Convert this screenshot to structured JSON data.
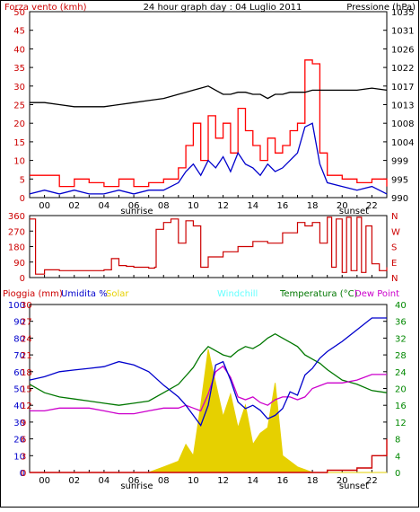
{
  "title": "24 hour graph day : 04 Luglio 2011",
  "colors": {
    "wind": "#cc0000",
    "gust": "#ff0000",
    "wind_avg": "#0000cc",
    "pressure": "#000000",
    "direction": "#cc0000",
    "rain": "#cc0000",
    "humidity": "#0000cc",
    "solar": "#e6d000",
    "windchill": "#66ffff",
    "temperature": "#007700",
    "dew_point": "#cc00cc",
    "axis_blue": "#0000cc",
    "axis_green": "#008800"
  },
  "x_axis": {
    "hour_ticks": [
      "00",
      "02",
      "04",
      "06",
      "08",
      "10",
      "12",
      "14",
      "16",
      "18",
      "20",
      "22"
    ],
    "sunrise_label": "sunrise",
    "sunset_label": "sunset"
  },
  "chart_data": [
    {
      "type": "line",
      "name": "wind-pressure",
      "left_axis_label": "Forza vento (kmh)",
      "right_axis_label": "Pressione (hPa)",
      "left_ticks": [
        0,
        5,
        10,
        15,
        20,
        25,
        30,
        35,
        40,
        45,
        50
      ],
      "right_ticks": [
        990,
        995,
        999,
        1004,
        1008,
        1013,
        1017,
        1022,
        1026,
        1031,
        1035
      ],
      "ylim": [
        0,
        50
      ],
      "pressure_ylim": [
        990,
        1035
      ],
      "x": [
        0,
        1,
        2,
        3,
        4,
        5,
        6,
        7,
        8,
        9,
        10,
        10.5,
        11,
        11.5,
        12,
        12.5,
        13,
        13.5,
        14,
        14.5,
        15,
        15.5,
        16,
        16.5,
        17,
        17.5,
        18,
        18.5,
        19,
        19.5,
        20,
        21,
        22,
        23,
        24
      ],
      "series": [
        {
          "key": "gust",
          "values": [
            6,
            6,
            3,
            5,
            4,
            3,
            5,
            3,
            4,
            5,
            8,
            14,
            20,
            10,
            22,
            16,
            20,
            12,
            24,
            18,
            14,
            10,
            16,
            12,
            14,
            18,
            20,
            37,
            36,
            12,
            6,
            5,
            4,
            5,
            3
          ]
        },
        {
          "key": "wind_avg",
          "values": [
            1,
            2,
            1,
            2,
            1,
            1,
            2,
            1,
            2,
            2,
            4,
            7,
            9,
            6,
            10,
            8,
            11,
            7,
            12,
            9,
            8,
            6,
            9,
            7,
            8,
            10,
            12,
            19,
            20,
            9,
            4,
            3,
            2,
            3,
            1
          ]
        },
        {
          "key": "pressure",
          "values": [
            1013,
            1013,
            1012.5,
            1012,
            1012,
            1012,
            1012.5,
            1013,
            1013.5,
            1014,
            1015,
            1015.5,
            1016,
            1016.5,
            1017,
            1016,
            1015,
            1015,
            1015.5,
            1015.5,
            1015,
            1015,
            1014,
            1015,
            1015,
            1015.5,
            1015.5,
            1015.5,
            1016,
            1016,
            1016,
            1016,
            1016,
            1016.5,
            1016
          ]
        }
      ]
    },
    {
      "type": "line",
      "name": "wind-direction",
      "left_ticks": [
        0,
        90,
        180,
        270,
        360
      ],
      "right_ticks": [
        "N",
        "E",
        "S",
        "W",
        "N"
      ],
      "ylim": [
        0,
        360
      ],
      "x": [
        0,
        0.3,
        0.4,
        1,
        2,
        3,
        4,
        5,
        5.5,
        6,
        6.5,
        7,
        7.5,
        8,
        8.4,
        8.5,
        9,
        9.5,
        10,
        10.5,
        11,
        11.5,
        12,
        13,
        14,
        15,
        16,
        17,
        18,
        18.5,
        19,
        19.5,
        20,
        20.3,
        20.6,
        21,
        21.3,
        21.6,
        22,
        22.3,
        22.6,
        23,
        23.5,
        24
      ],
      "series": [
        {
          "key": "direction",
          "values": [
            340,
            340,
            20,
            45,
            40,
            40,
            40,
            45,
            110,
            70,
            65,
            60,
            60,
            55,
            60,
            280,
            320,
            340,
            200,
            330,
            300,
            60,
            120,
            150,
            180,
            210,
            200,
            260,
            320,
            300,
            320,
            200,
            350,
            60,
            340,
            30,
            350,
            40,
            350,
            30,
            300,
            80,
            40,
            60
          ]
        }
      ]
    },
    {
      "type": "line",
      "name": "rain-humidity-temperature",
      "legend": [
        "Pioggia (mm)",
        "Umidita %",
        "Solar",
        "Windchill",
        "Temperatura (°C)",
        "Dew Point"
      ],
      "rain_ticks": [
        0,
        1,
        2,
        3
      ],
      "humidity_ticks": [
        0,
        10,
        20,
        30,
        40,
        50,
        60,
        70,
        80,
        90,
        100
      ],
      "left_ticks": [
        0,
        3,
        6,
        9,
        12,
        15,
        18,
        21,
        24,
        27,
        30
      ],
      "right_ticks": [
        0,
        4,
        8,
        12,
        16,
        20,
        24,
        28,
        32,
        36,
        40
      ],
      "ylim": [
        0,
        30
      ],
      "temperature_ylim": [
        0,
        40
      ],
      "x": [
        0,
        1,
        2,
        3,
        4,
        5,
        6,
        7,
        8,
        9,
        10,
        10.5,
        11,
        11.5,
        12,
        12.5,
        13,
        13.5,
        14,
        14.5,
        15,
        15.5,
        16,
        16.5,
        17,
        17.5,
        18,
        18.5,
        19,
        19.5,
        20,
        21,
        22,
        23,
        24
      ],
      "series": [
        {
          "key": "humidity",
          "values": [
            55,
            57,
            60,
            61,
            62,
            63,
            66,
            64,
            60,
            52,
            45,
            40,
            34,
            28,
            40,
            64,
            66,
            55,
            42,
            38,
            40,
            37,
            32,
            34,
            38,
            48,
            46,
            58,
            62,
            68,
            72,
            78,
            85,
            92,
            92
          ]
        },
        {
          "key": "temperature",
          "values": [
            21,
            19,
            18,
            17.5,
            17,
            16.5,
            16,
            16.5,
            17,
            19,
            21,
            23,
            25,
            28,
            30,
            29,
            28,
            27.5,
            29,
            30,
            29.5,
            30.5,
            32,
            33,
            32,
            31,
            30,
            28,
            27,
            26,
            24.5,
            22,
            21,
            19.5,
            19
          ]
        },
        {
          "key": "dew_point",
          "values": [
            11,
            11,
            11.5,
            11.5,
            11.5,
            11,
            10.5,
            10.5,
            11,
            11.5,
            11.5,
            12,
            11.5,
            11,
            14,
            18,
            19,
            17,
            13.5,
            13,
            13.5,
            12.5,
            12,
            13,
            13.5,
            13.5,
            13,
            13.5,
            15,
            15.5,
            16,
            16,
            16.5,
            17.5,
            17.5
          ]
        },
        {
          "key": "solar",
          "values": [
            0,
            0,
            0,
            0,
            0,
            0,
            0,
            0,
            0,
            1,
            2,
            5,
            3,
            12,
            22,
            16,
            10,
            14,
            8,
            12,
            5,
            7,
            8,
            16,
            3,
            2,
            1,
            0.5,
            0,
            0,
            0,
            0,
            0,
            0,
            0
          ]
        },
        {
          "key": "rain",
          "values": [
            0,
            0,
            0,
            0,
            0,
            0,
            0,
            0,
            0,
            0,
            0,
            0,
            0,
            0,
            0,
            0,
            0,
            0,
            0,
            0,
            0,
            0,
            0,
            0,
            0,
            0,
            0,
            0,
            0,
            0,
            0.04,
            0.04,
            0.08,
            0.3,
            0.6
          ]
        }
      ]
    }
  ]
}
